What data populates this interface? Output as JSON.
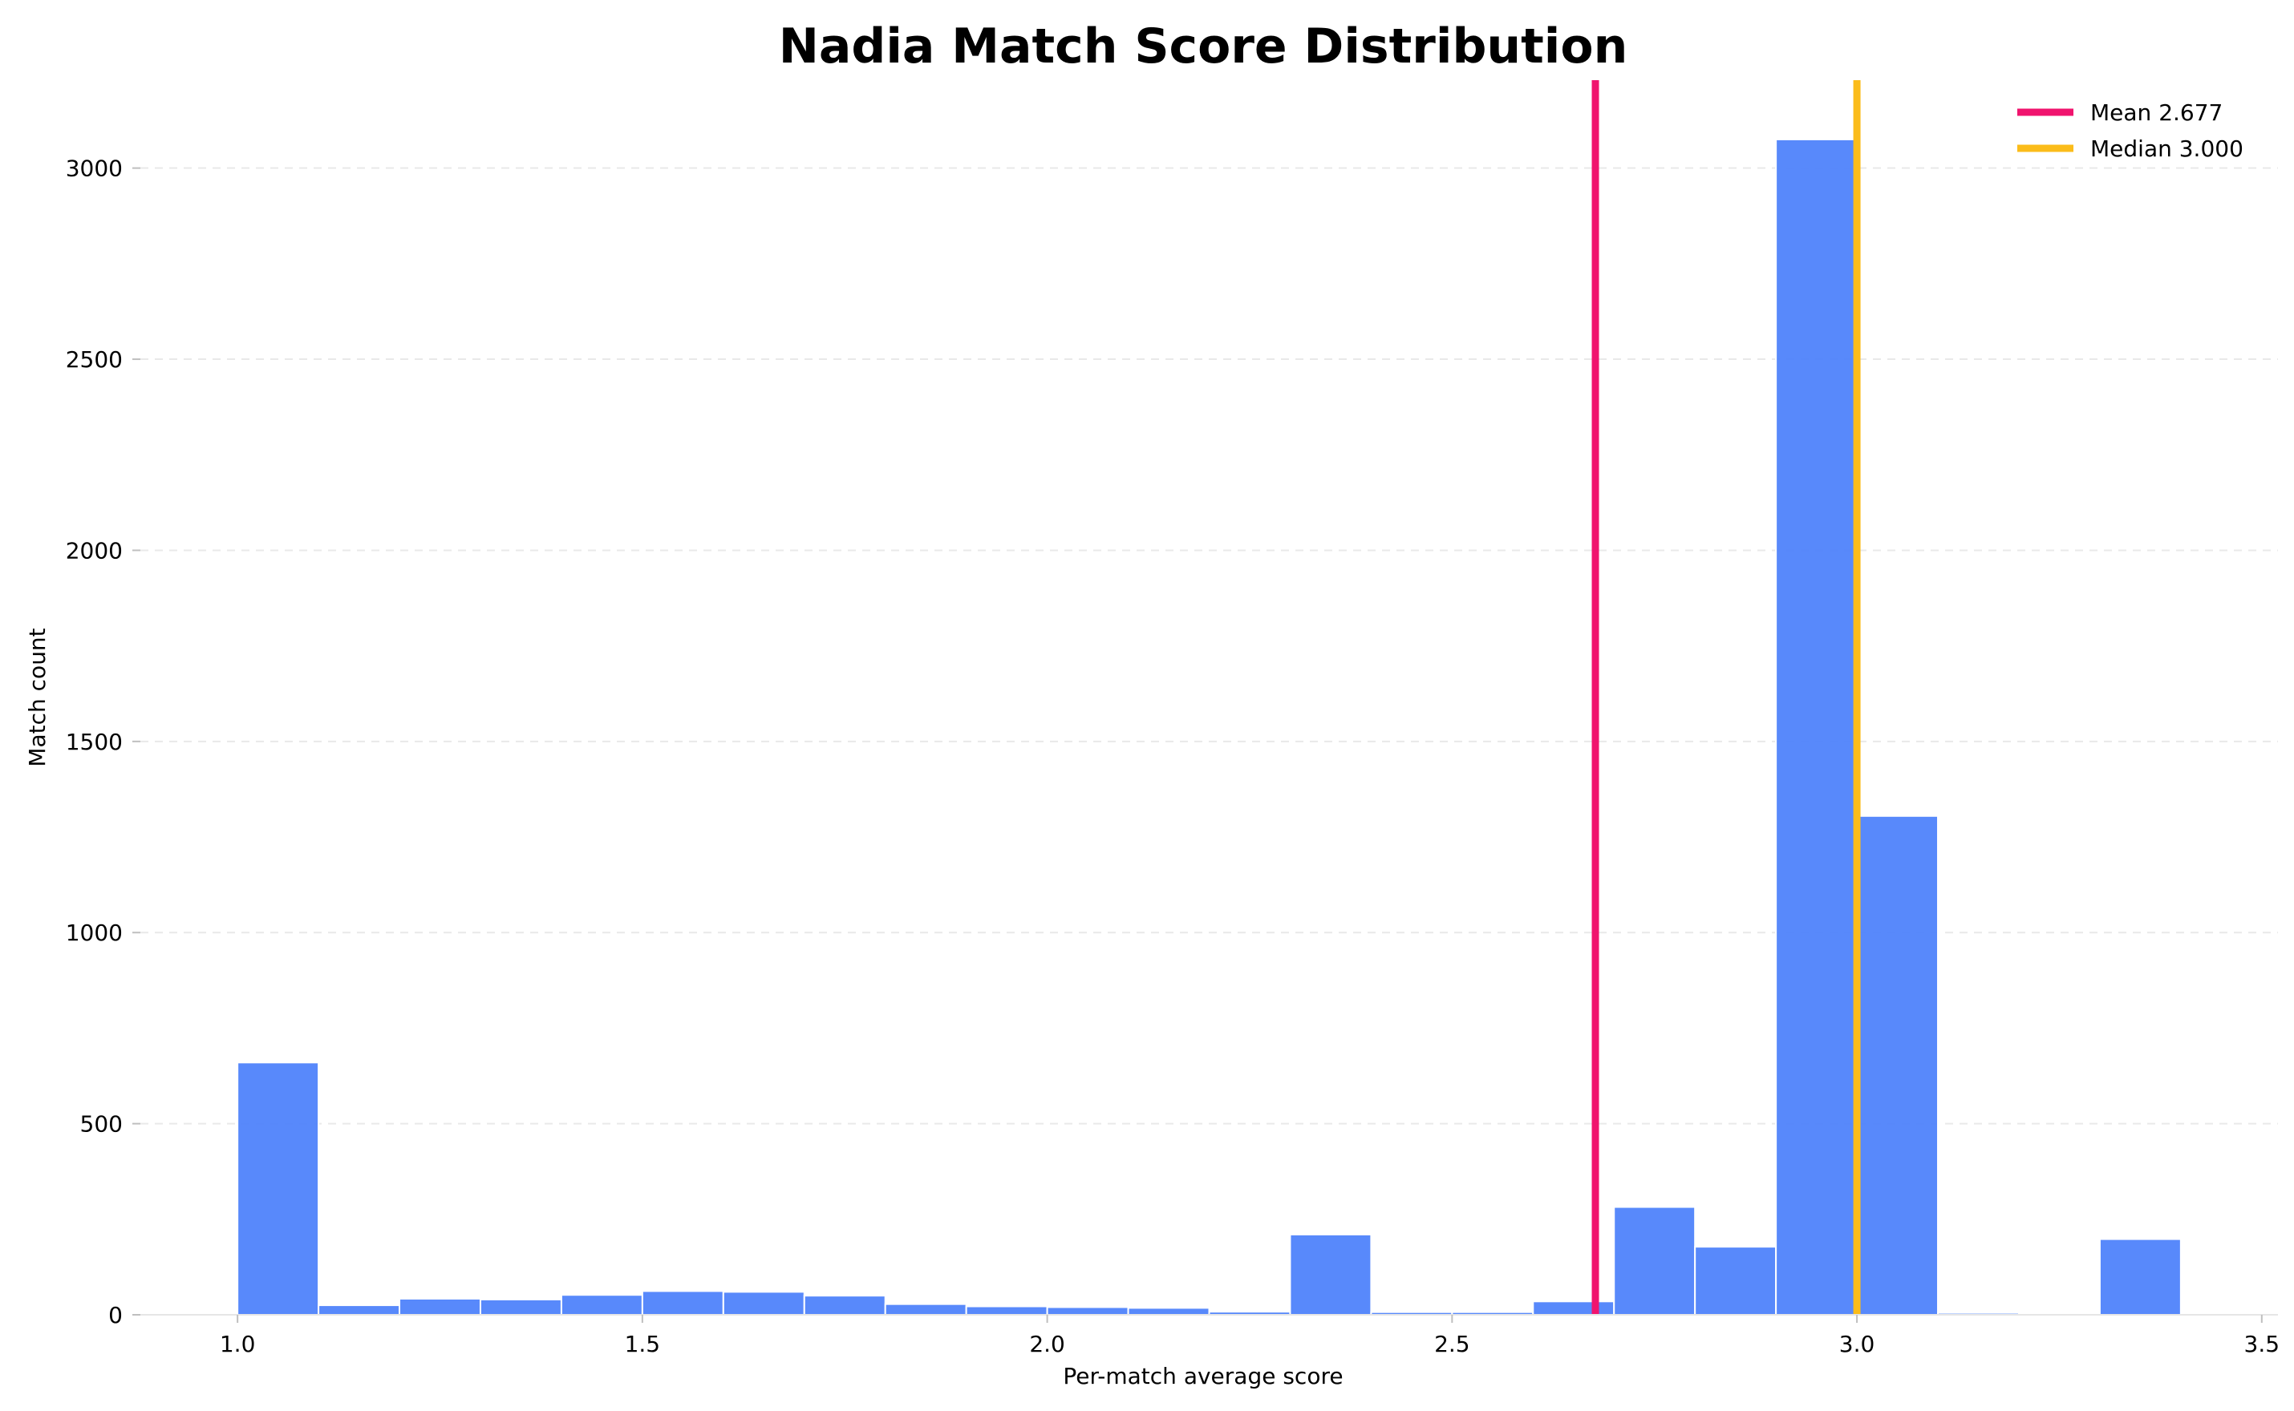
{
  "chart_data": {
    "type": "bar",
    "title": "Nadia Match Score Distribution",
    "xlabel": "Per-match average score",
    "ylabel": "Match count",
    "xlim": [
      0.88,
      3.52
    ],
    "ylim": [
      0,
      3230
    ],
    "xticks": [
      1.0,
      1.5,
      2.0,
      2.5,
      3.0,
      3.5
    ],
    "xtick_labels": [
      "1.0",
      "1.5",
      "2.0",
      "2.5",
      "3.0",
      "3.5"
    ],
    "yticks": [
      0,
      500,
      1000,
      1500,
      2000,
      2500,
      3000
    ],
    "ytick_labels": [
      "0",
      "500",
      "1000",
      "1500",
      "2000",
      "2500",
      "3000"
    ],
    "grid": "y-dashed",
    "bar_color": "#4f83fb",
    "bins": [
      {
        "x0": 1.0,
        "x1": 1.1,
        "count": 660
      },
      {
        "x0": 1.1,
        "x1": 1.2,
        "count": 25
      },
      {
        "x0": 1.2,
        "x1": 1.3,
        "count": 42
      },
      {
        "x0": 1.3,
        "x1": 1.4,
        "count": 40
      },
      {
        "x0": 1.4,
        "x1": 1.5,
        "count": 52
      },
      {
        "x0": 1.5,
        "x1": 1.6,
        "count": 62
      },
      {
        "x0": 1.6,
        "x1": 1.7,
        "count": 60
      },
      {
        "x0": 1.7,
        "x1": 1.8,
        "count": 50
      },
      {
        "x0": 1.8,
        "x1": 1.9,
        "count": 28
      },
      {
        "x0": 1.9,
        "x1": 2.0,
        "count": 22
      },
      {
        "x0": 2.0,
        "x1": 2.1,
        "count": 20
      },
      {
        "x0": 2.1,
        "x1": 2.2,
        "count": 18
      },
      {
        "x0": 2.2,
        "x1": 2.3,
        "count": 8
      },
      {
        "x0": 2.3,
        "x1": 2.4,
        "count": 210
      },
      {
        "x0": 2.4,
        "x1": 2.5,
        "count": 7
      },
      {
        "x0": 2.5,
        "x1": 2.6,
        "count": 7
      },
      {
        "x0": 2.6,
        "x1": 2.7,
        "count": 35
      },
      {
        "x0": 2.7,
        "x1": 2.8,
        "count": 282
      },
      {
        "x0": 2.8,
        "x1": 2.9,
        "count": 178
      },
      {
        "x0": 2.9,
        "x1": 3.0,
        "count": 3075
      },
      {
        "x0": 3.0,
        "x1": 3.1,
        "count": 1305
      },
      {
        "x0": 3.1,
        "x1": 3.2,
        "count": 5
      },
      {
        "x0": 3.2,
        "x1": 3.3,
        "count": 0
      },
      {
        "x0": 3.3,
        "x1": 3.4,
        "count": 198
      }
    ],
    "reference_lines": [
      {
        "label": "Mean 2.677",
        "value": 2.677,
        "color": "#f0146e"
      },
      {
        "label": "Median 3.000",
        "value": 3.0,
        "color": "#fbbc1a"
      }
    ],
    "legend_position": "top-right"
  }
}
